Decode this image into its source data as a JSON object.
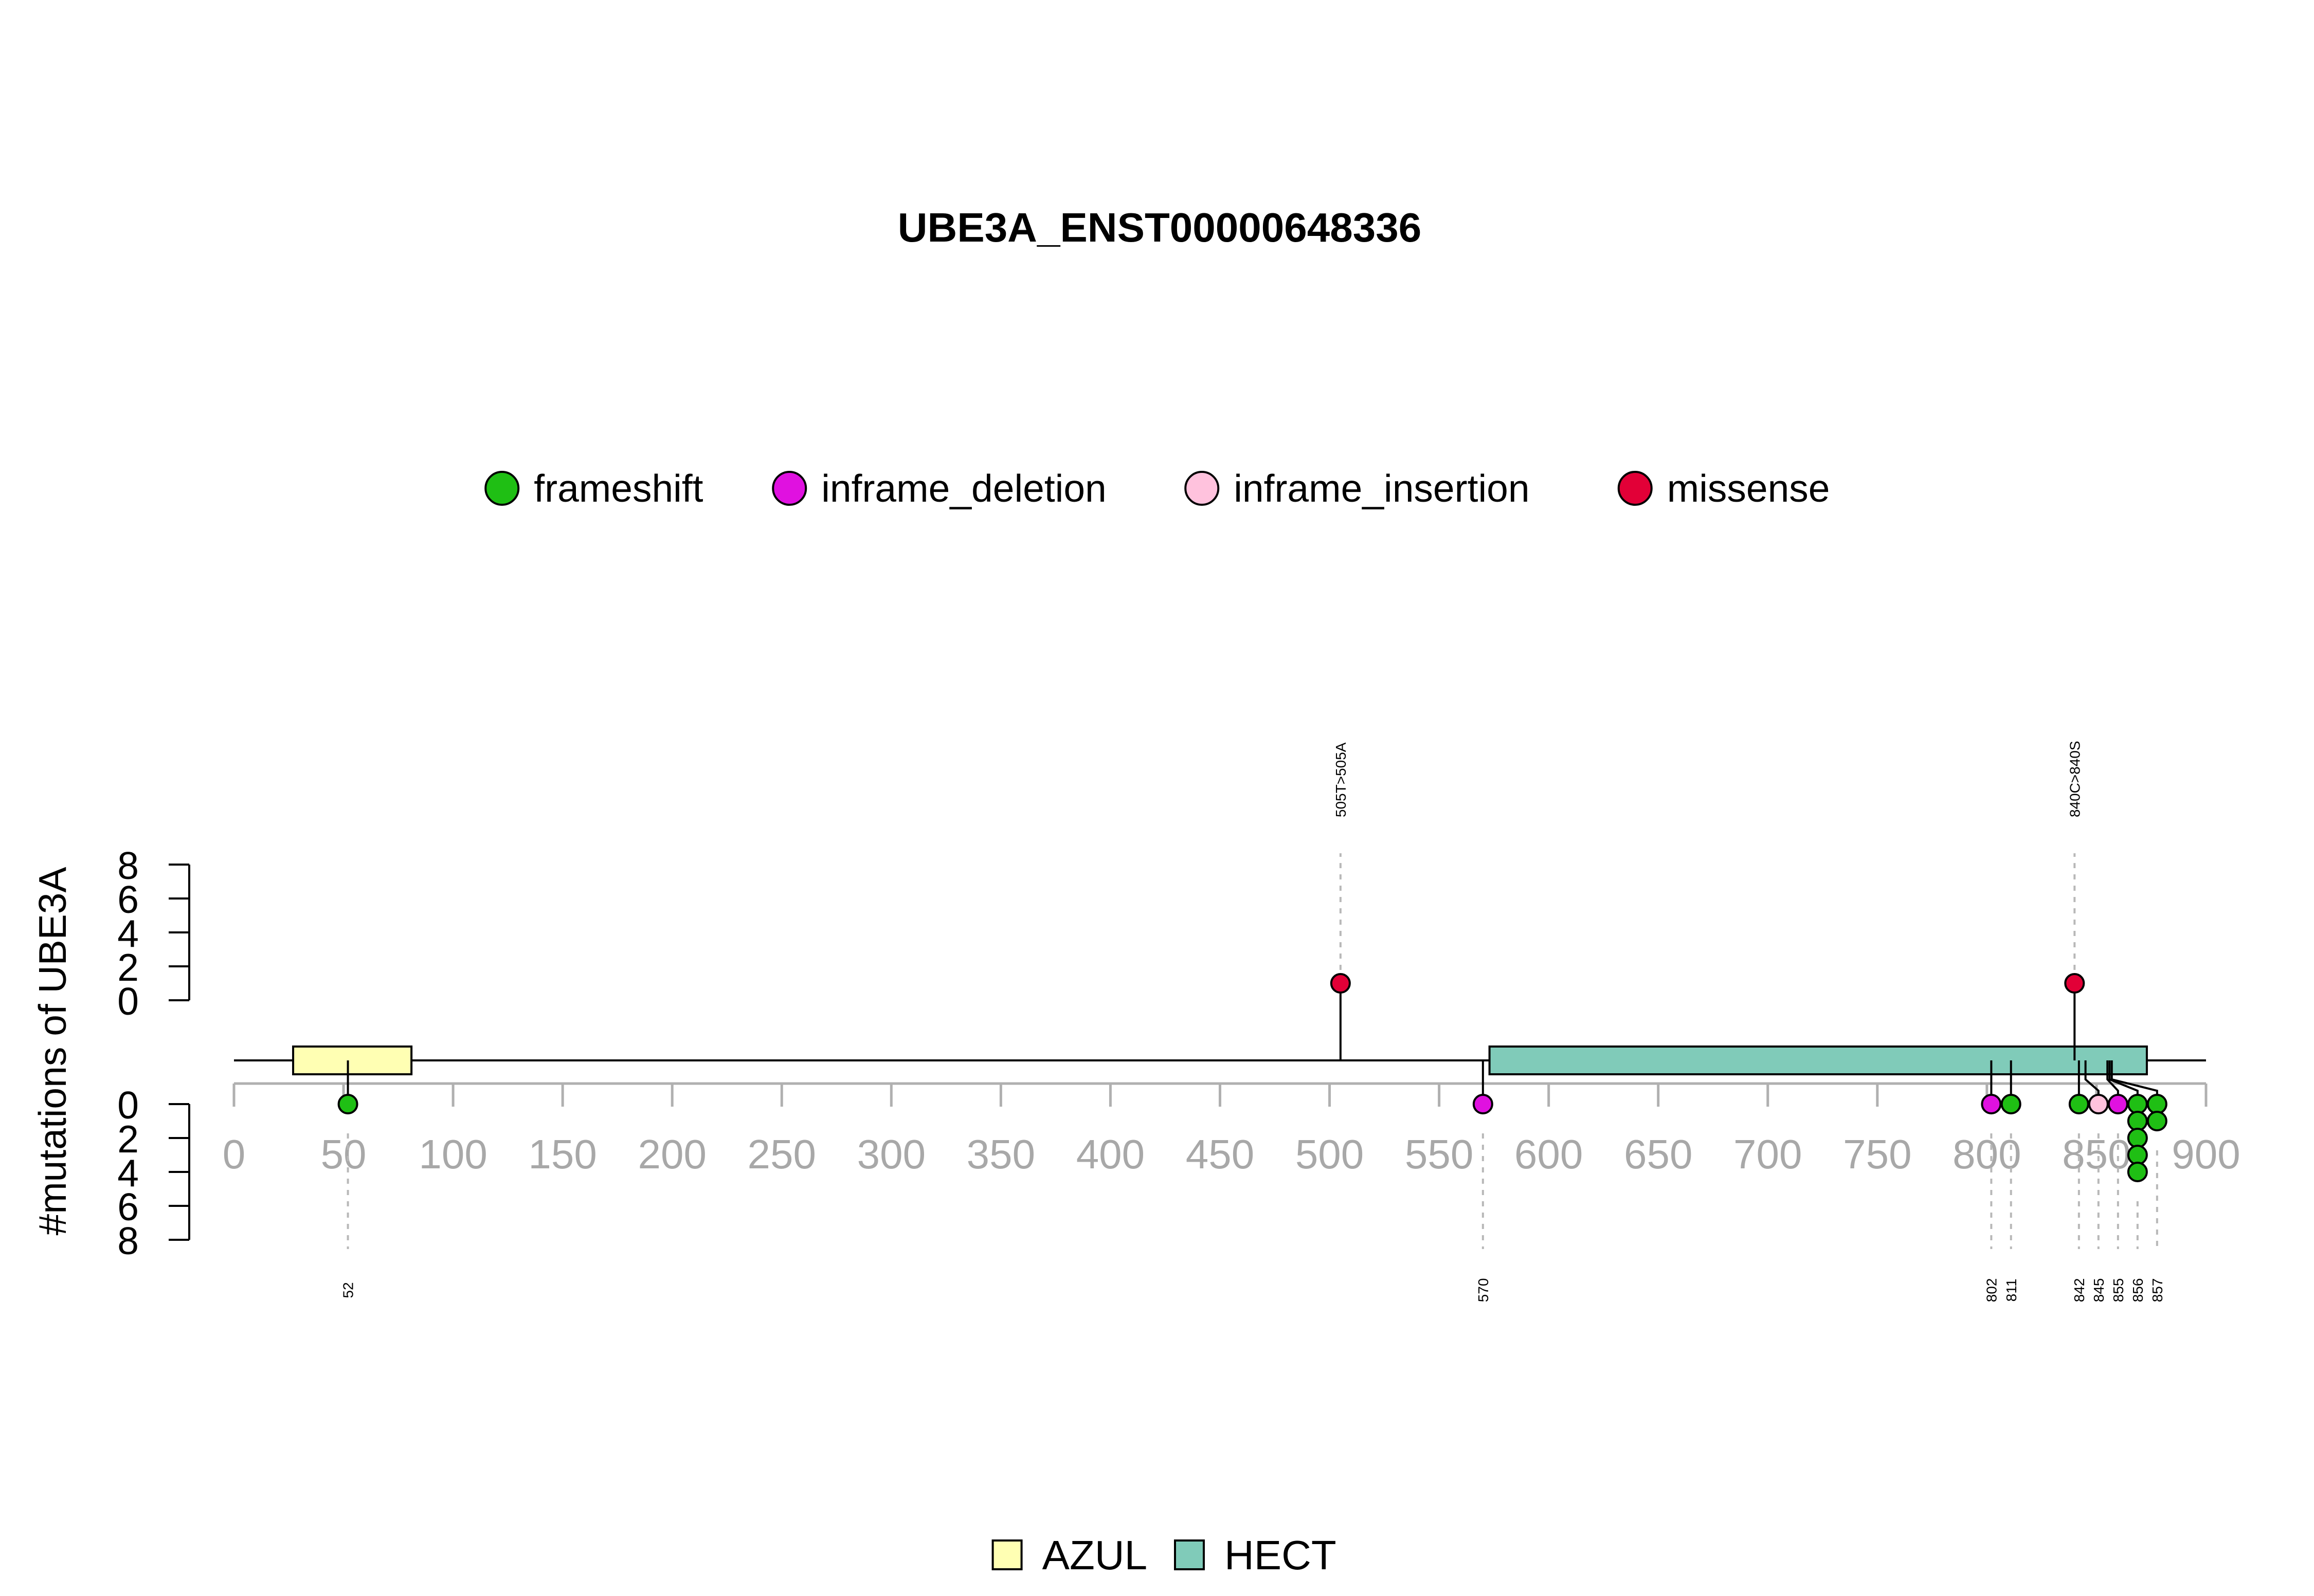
{
  "chart_data": {
    "type": "lollipop",
    "title": "UBE3A_ENST00000648336",
    "ylabel": "#mutations of UBE3A",
    "xlim": [
      0,
      900
    ],
    "x_ticks": [
      0,
      50,
      100,
      150,
      200,
      250,
      300,
      350,
      400,
      450,
      500,
      550,
      600,
      650,
      700,
      750,
      800,
      850,
      900
    ],
    "y_ticks_top": [
      0,
      2,
      4,
      6,
      8
    ],
    "y_ticks_bottom": [
      0,
      2,
      4,
      6,
      8
    ],
    "mutation_legend": [
      {
        "label": "frameshift",
        "color": "#1fbf14"
      },
      {
        "label": "inframe_deletion",
        "color": "#e011e0"
      },
      {
        "label": "inframe_insertion",
        "color": "#ffc2dd"
      },
      {
        "label": "missense",
        "color": "#e20037"
      }
    ],
    "domain_legend": [
      {
        "label": "AZUL",
        "color": "#ffffb3"
      },
      {
        "label": "HECT",
        "color": "#80cbb9"
      }
    ],
    "domains": [
      {
        "name": "AZUL",
        "start": 27,
        "end": 81
      },
      {
        "name": "HECT",
        "start": 573,
        "end": 873
      }
    ],
    "mutations_top": [
      {
        "position": 505,
        "type": "missense",
        "count": 1,
        "label": "505T>505A"
      },
      {
        "position": 840,
        "type": "missense",
        "count": 1,
        "label": "840C>840S"
      }
    ],
    "mutations_bottom": [
      {
        "position": 52,
        "type": "frameshift",
        "count": 1,
        "label": "52"
      },
      {
        "position": 570,
        "type": "inframe_deletion",
        "count": 1,
        "label": "570"
      },
      {
        "position": 802,
        "type": "inframe_deletion",
        "count": 1,
        "label": "802"
      },
      {
        "position": 811,
        "type": "frameshift",
        "count": 1,
        "label": "811"
      },
      {
        "position": 842,
        "type": "frameshift",
        "count": 1,
        "label": "842"
      },
      {
        "position": 845,
        "type": "inframe_insertion",
        "count": 1,
        "label": "845"
      },
      {
        "position": 855,
        "type": "inframe_deletion",
        "count": 1,
        "label": "855"
      },
      {
        "position": 856,
        "type": "frameshift",
        "count": 5,
        "label": "856"
      },
      {
        "position": 857,
        "type": "frameshift",
        "count": 2,
        "label": "857"
      }
    ]
  }
}
